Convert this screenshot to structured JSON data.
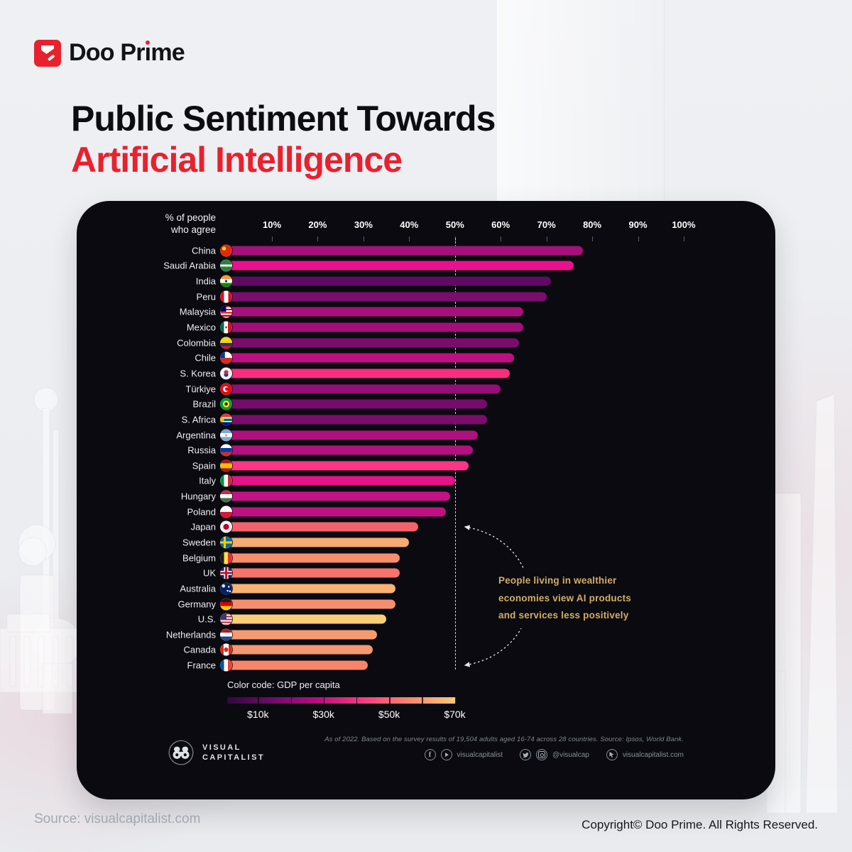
{
  "brand": {
    "name": "Doo Prime",
    "name_pre": "Doo Pr",
    "name_i": "ı",
    "name_post": "me",
    "accent_color": "#e8212e"
  },
  "title": {
    "line1": "Public Sentiment Towards",
    "line2": "Artificial Intelligence"
  },
  "chart_data": {
    "type": "bar",
    "title": "Public Sentiment Towards Artificial Intelligence",
    "axis_label_lines": [
      "% of people",
      "who agree"
    ],
    "x_ticks": [
      "10%",
      "20%",
      "30%",
      "40%",
      "50%",
      "60%",
      "70%",
      "80%",
      "90%",
      "100%"
    ],
    "xlim": [
      0,
      100
    ],
    "reference_line_pct": 50,
    "grid": false,
    "countries": [
      {
        "name": "China",
        "value": 78,
        "color": "#a5107b",
        "flag": "china"
      },
      {
        "name": "Saudi Arabia",
        "value": 76,
        "color": "#ed0f90",
        "flag": "saudi-arabia"
      },
      {
        "name": "India",
        "value": 71,
        "color": "#5f0b63",
        "flag": "india"
      },
      {
        "name": "Peru",
        "value": 70,
        "color": "#7c0d6e",
        "flag": "peru"
      },
      {
        "name": "Malaysia",
        "value": 65,
        "color": "#a90f7c",
        "flag": "malaysia"
      },
      {
        "name": "Mexico",
        "value": 65,
        "color": "#a30f78",
        "flag": "mexico"
      },
      {
        "name": "Colombia",
        "value": 64,
        "color": "#7a0d6c",
        "flag": "colombia"
      },
      {
        "name": "Chile",
        "value": 63,
        "color": "#bc1082",
        "flag": "chile"
      },
      {
        "name": "S. Korea",
        "value": 62,
        "color": "#fa2e7f",
        "flag": "south-korea"
      },
      {
        "name": "Türkiye",
        "value": 60,
        "color": "#930e75",
        "flag": "turkiye"
      },
      {
        "name": "Brazil",
        "value": 57,
        "color": "#750c6b",
        "flag": "brazil"
      },
      {
        "name": "S. Africa",
        "value": 57,
        "color": "#7b0d6d",
        "flag": "south-africa"
      },
      {
        "name": "Argentina",
        "value": 55,
        "color": "#ae107d",
        "flag": "argentina"
      },
      {
        "name": "Russia",
        "value": 54,
        "color": "#b31080",
        "flag": "russia"
      },
      {
        "name": "Spain",
        "value": 53,
        "color": "#fd3585",
        "flag": "spain"
      },
      {
        "name": "Italy",
        "value": 50,
        "color": "#e51289",
        "flag": "italy"
      },
      {
        "name": "Hungary",
        "value": 49,
        "color": "#c41185",
        "flag": "hungary"
      },
      {
        "name": "Poland",
        "value": 48,
        "color": "#c01183",
        "flag": "poland"
      },
      {
        "name": "Japan",
        "value": 42,
        "color": "#f6616c",
        "flag": "japan"
      },
      {
        "name": "Sweden",
        "value": 40,
        "color": "#f7aa71",
        "flag": "sweden"
      },
      {
        "name": "Belgium",
        "value": 38,
        "color": "#f58d6e",
        "flag": "belgium"
      },
      {
        "name": "UK",
        "value": 38,
        "color": "#f7736c",
        "flag": "uk"
      },
      {
        "name": "Australia",
        "value": 37,
        "color": "#f8b274",
        "flag": "australia"
      },
      {
        "name": "Germany",
        "value": 37,
        "color": "#f58e6f",
        "flag": "germany"
      },
      {
        "name": "U.S.",
        "value": 35,
        "color": "#f8ce79",
        "flag": "us"
      },
      {
        "name": "Netherlands",
        "value": 33,
        "color": "#f69b70",
        "flag": "netherlands"
      },
      {
        "name": "Canada",
        "value": 32,
        "color": "#f69770",
        "flag": "canada"
      },
      {
        "name": "France",
        "value": 31,
        "color": "#f6846d",
        "flag": "france"
      }
    ],
    "annotation": {
      "lines": [
        "People living in wealthier",
        "economies view AI products",
        "and services less positively"
      ],
      "color": "#d3ae63"
    },
    "legend": {
      "label": "Color code: GDP per capita",
      "tick_labels": [
        "$10k",
        "$30k",
        "$50k",
        "$70k"
      ],
      "gradient": [
        "#30093f",
        "#6f0c68",
        "#b80f7f",
        "#f73d80",
        "#f8876d",
        "#fbc97b"
      ],
      "position": "bottom-left"
    }
  },
  "panel_footer": {
    "logo_line1": "VISUAL",
    "logo_line2": "CAPITALIST",
    "fine_print": "As of 2022. Based on the survey results of 19,504 adults aged 16-74 across 28 countries. Source: Ipsos, World Bank.",
    "social_groups": [
      {
        "label": "visualcapitalist"
      },
      {
        "label": "@visualcap"
      },
      {
        "label": "visualcapitalist.com"
      }
    ]
  },
  "page_footer": {
    "source": "Source: visualcapitalist.com",
    "copyright": "Copyright© Doo Prime. All Rights Reserved."
  }
}
